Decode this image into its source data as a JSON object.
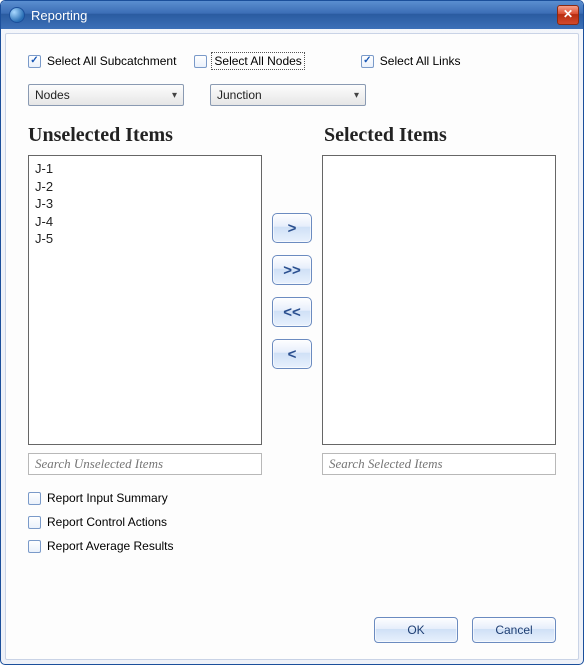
{
  "window": {
    "title": "Reporting",
    "close_glyph": "✕"
  },
  "checkboxes": {
    "subcatchment": {
      "label": "Select All Subcatchment",
      "checked": true
    },
    "nodes": {
      "label": "Select All Nodes",
      "checked": false,
      "focused": true
    },
    "links": {
      "label": "Select All Links",
      "checked": true
    }
  },
  "dropdowns": {
    "category": {
      "value": "Nodes"
    },
    "type": {
      "value": "Junction"
    }
  },
  "headings": {
    "unselected": "Unselected Items",
    "selected": "Selected Items"
  },
  "unselected_items": [
    "J-1",
    "J-2",
    "J-3",
    "J-4",
    "J-5"
  ],
  "selected_items": [],
  "transfer": {
    "add": ">",
    "add_all": ">>",
    "remove_all": "<<",
    "remove": "<"
  },
  "search": {
    "unselected_placeholder": "Search Unselected Items",
    "selected_placeholder": "Search Selected Items"
  },
  "options": {
    "input_summary": {
      "label": "Report Input Summary",
      "checked": false
    },
    "control_actions": {
      "label": "Report Control Actions",
      "checked": false
    },
    "average_results": {
      "label": "Report Average Results",
      "checked": false
    }
  },
  "buttons": {
    "ok": "OK",
    "cancel": "Cancel"
  },
  "colors": {
    "titlebar_start": "#5a8ed0",
    "titlebar_end": "#2a5ba0",
    "accent_border": "#6b8bc0",
    "check_mark": "#1857b5"
  }
}
